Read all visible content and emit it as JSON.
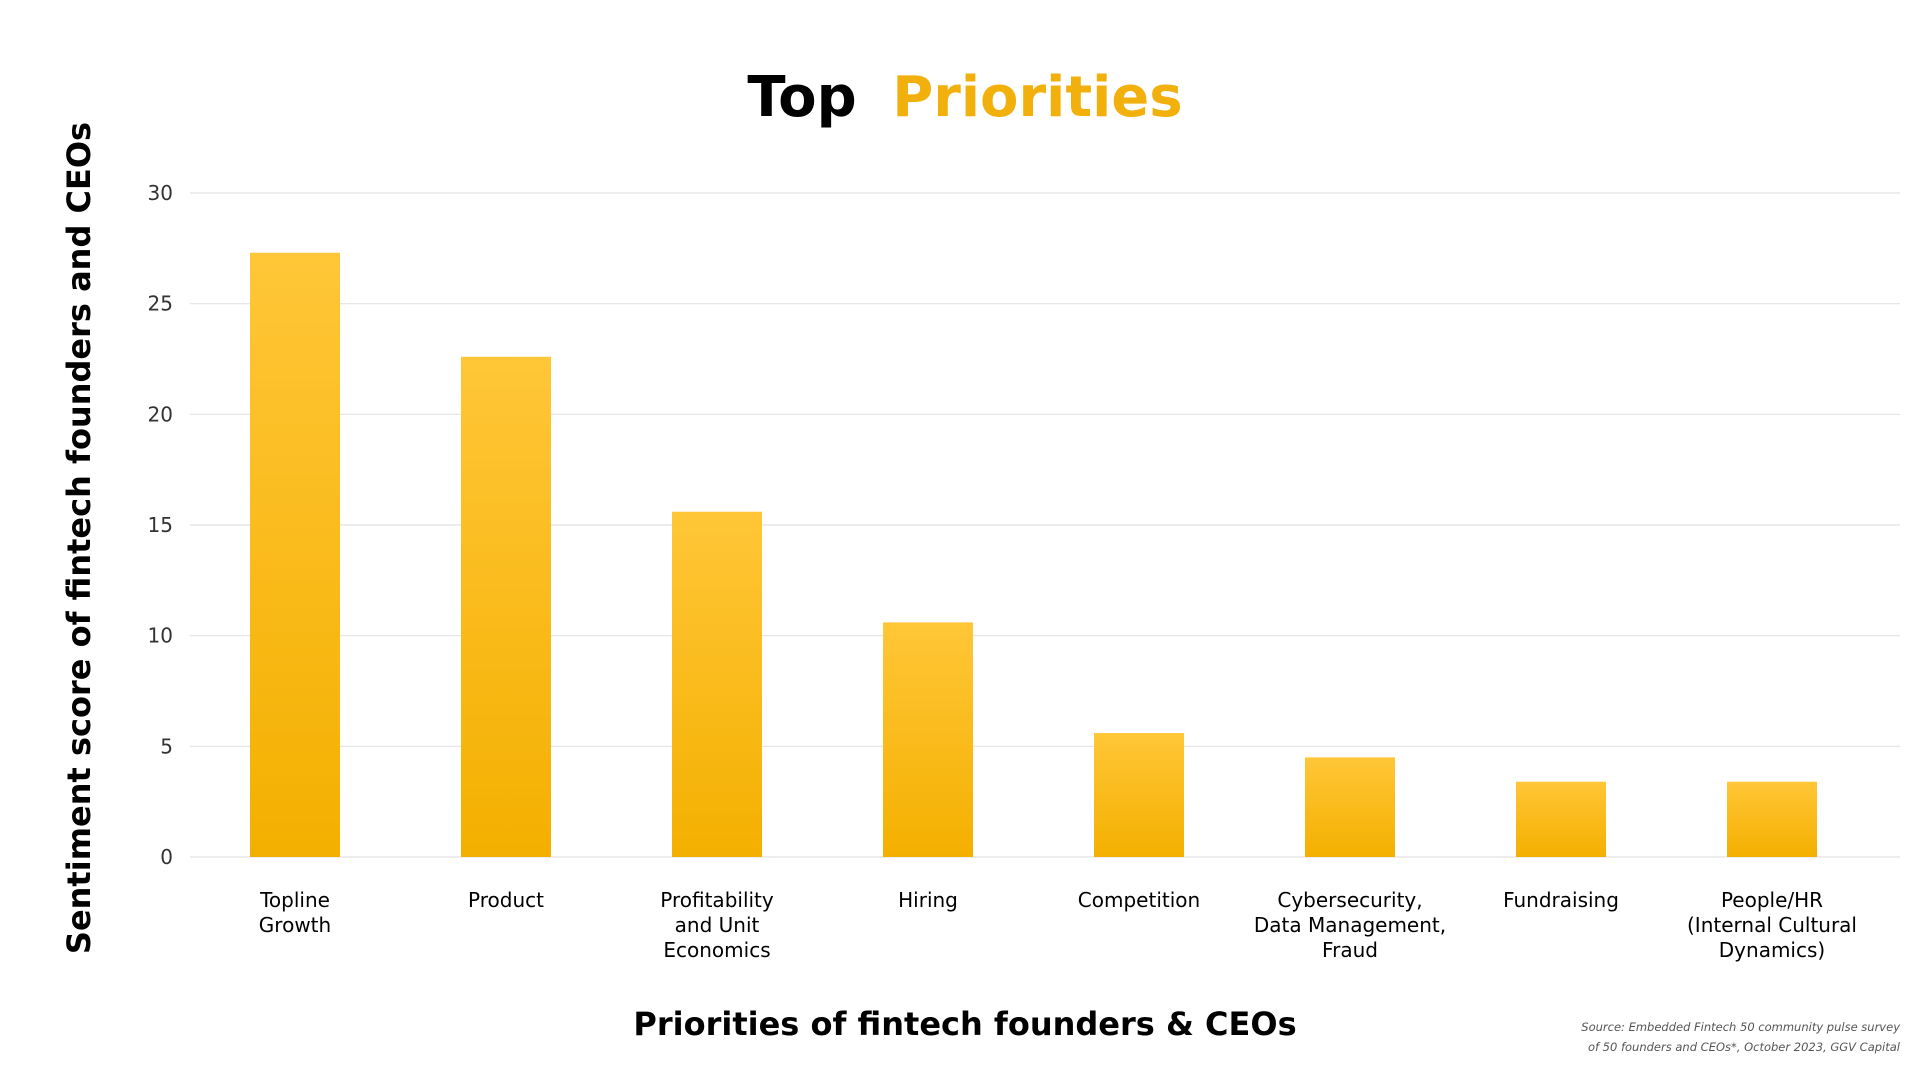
{
  "chart_data": {
    "type": "bar",
    "title": "Top Priorities",
    "title_parts": [
      "Top",
      "Priorities"
    ],
    "categories": [
      "Topline Growth",
      "Product",
      "Profitability and Unit Economics",
      "Hiring",
      "Competition",
      "Cybersecurity, Data Management, Fraud",
      "Fundraising",
      "People/HR (Internal Cultural Dynamics)"
    ],
    "category_lines": [
      [
        "Topline",
        "Growth"
      ],
      [
        "Product"
      ],
      [
        "Profitability",
        "and Unit",
        "Economics"
      ],
      [
        "Hiring"
      ],
      [
        "Competition"
      ],
      [
        "Cybersecurity,",
        "Data Management,",
        "Fraud"
      ],
      [
        "Fundraising"
      ],
      [
        "People/HR",
        "(Internal Cultural",
        "Dynamics)"
      ]
    ],
    "values": [
      27.3,
      22.6,
      15.6,
      10.6,
      5.6,
      4.5,
      3.4,
      3.4
    ],
    "xlabel": "Priorities of fintech founders & CEOs",
    "ylabel": "Sentiment score of fintech founders and CEOs",
    "ylim": [
      0,
      30
    ],
    "yticks": [
      "0",
      "5",
      "10",
      "15",
      "20",
      "25",
      "30"
    ],
    "grid": true,
    "bar_color_top": "#ffc637",
    "bar_color_bottom": "#f4b000",
    "title_accent_color": "#f2b00c"
  },
  "source_lines": [
    "Source: Embedded Fintech 50 community pulse survey",
    "of 50 founders and CEOs*, October 2023, GGV Capital"
  ]
}
